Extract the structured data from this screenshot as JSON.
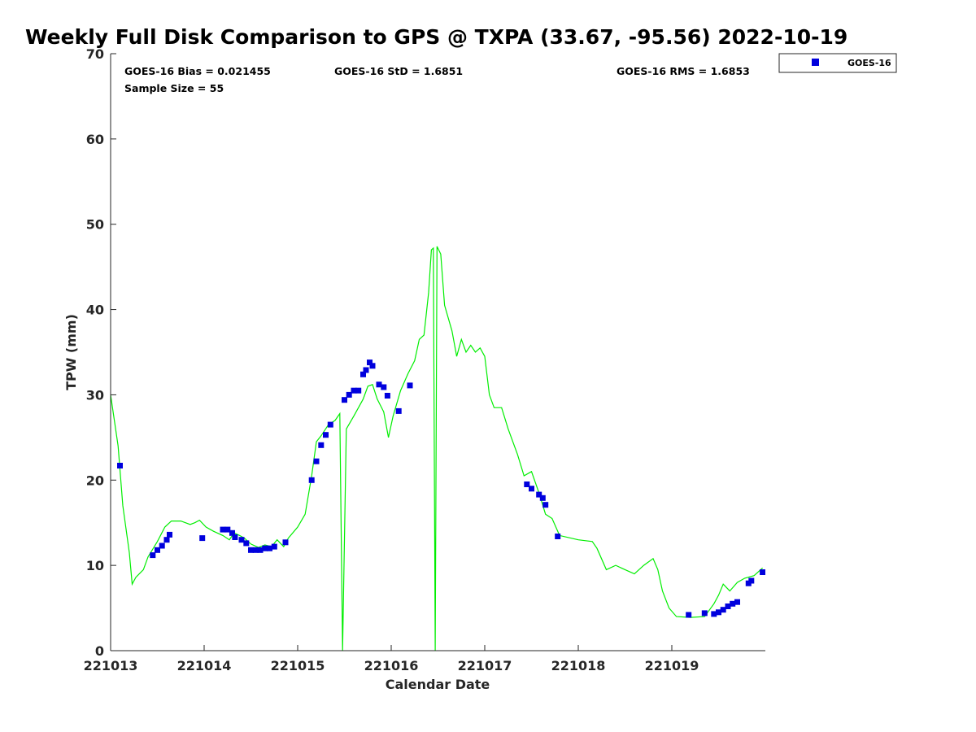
{
  "colors": {
    "gps_line": "#00ee00",
    "goes_marker": "#0000dd",
    "axis": "#262626"
  },
  "chart_data": {
    "type": "line",
    "title": "Weekly Full Disk Comparison to GPS @ TXPA (33.67, -95.56) 2022-10-19",
    "xlabel": "Calendar Date",
    "ylabel": "TPW (mm)",
    "xlim": [
      221013,
      221020
    ],
    "ylim": [
      0,
      70
    ],
    "x_ticks": [
      221013,
      221014,
      221015,
      221016,
      221017,
      221018,
      221019
    ],
    "x_tick_labels": [
      "221013",
      "221014",
      "221015",
      "221016",
      "221017",
      "221018",
      "221019"
    ],
    "y_ticks": [
      0,
      10,
      20,
      30,
      40,
      50,
      60,
      70
    ],
    "y_tick_labels": [
      "0",
      "10",
      "20",
      "30",
      "40",
      "50",
      "60",
      "70"
    ],
    "grid": false,
    "legend_position": "top-right outside plot",
    "legend": [
      "GOES-16"
    ],
    "stats": {
      "bias": "GOES-16 Bias = 0.021455",
      "std": "GOES-16 StD = 1.6851",
      "rms": "GOES-16 RMS = 1.6853",
      "sample": "Sample Size = 55"
    },
    "series": [
      {
        "kind": "line",
        "color": "#00ee00",
        "points": [
          [
            221013.0,
            30.0
          ],
          [
            221013.08,
            24.0
          ],
          [
            221013.13,
            17.0
          ],
          [
            221013.2,
            11.5
          ],
          [
            221013.23,
            7.8
          ],
          [
            221013.27,
            8.6
          ],
          [
            221013.35,
            9.5
          ],
          [
            221013.4,
            11.0
          ],
          [
            221013.5,
            12.8
          ],
          [
            221013.58,
            14.5
          ],
          [
            221013.65,
            15.2
          ],
          [
            221013.75,
            15.2
          ],
          [
            221013.85,
            14.8
          ],
          [
            221013.9,
            15.0
          ],
          [
            221013.95,
            15.3
          ],
          [
            221014.02,
            14.5
          ],
          [
            221014.1,
            14.0
          ],
          [
            221014.2,
            13.5
          ],
          [
            221014.27,
            13.0
          ],
          [
            221014.32,
            13.8
          ],
          [
            221014.38,
            13.5
          ],
          [
            221014.43,
            13.2
          ],
          [
            221014.5,
            12.5
          ],
          [
            221014.58,
            12.1
          ],
          [
            221014.65,
            12.4
          ],
          [
            221014.72,
            12.2
          ],
          [
            221014.78,
            13.0
          ],
          [
            221014.85,
            12.2
          ],
          [
            221014.9,
            13.2
          ],
          [
            221015.0,
            14.5
          ],
          [
            221015.08,
            16.0
          ],
          [
            221015.15,
            20.5
          ],
          [
            221015.2,
            24.5
          ],
          [
            221015.25,
            25.2
          ],
          [
            221015.33,
            26.5
          ],
          [
            221015.4,
            27.0
          ],
          [
            221015.45,
            27.8
          ],
          [
            221015.48,
            0.0
          ],
          [
            221015.52,
            26.0
          ],
          [
            221015.6,
            27.5
          ],
          [
            221015.7,
            29.5
          ],
          [
            221015.75,
            31.0
          ],
          [
            221015.8,
            31.2
          ],
          [
            221015.85,
            29.5
          ],
          [
            221015.92,
            28.0
          ],
          [
            221015.97,
            25.0
          ],
          [
            221016.02,
            27.5
          ],
          [
            221016.1,
            30.5
          ],
          [
            221016.18,
            32.5
          ],
          [
            221016.25,
            34.0
          ],
          [
            221016.3,
            36.5
          ],
          [
            221016.35,
            37.0
          ],
          [
            221016.4,
            42.0
          ],
          [
            221016.43,
            47.0
          ],
          [
            221016.45,
            47.2
          ],
          [
            221016.47,
            0.0
          ],
          [
            221016.49,
            47.4
          ],
          [
            221016.53,
            46.5
          ],
          [
            221016.57,
            40.5
          ],
          [
            221016.65,
            37.5
          ],
          [
            221016.7,
            34.5
          ],
          [
            221016.75,
            36.5
          ],
          [
            221016.8,
            35.0
          ],
          [
            221016.85,
            35.8
          ],
          [
            221016.9,
            35.0
          ],
          [
            221016.95,
            35.5
          ],
          [
            221017.0,
            34.5
          ],
          [
            221017.05,
            30.0
          ],
          [
            221017.1,
            28.5
          ],
          [
            221017.18,
            28.5
          ],
          [
            221017.25,
            26.0
          ],
          [
            221017.35,
            23.0
          ],
          [
            221017.42,
            20.5
          ],
          [
            221017.5,
            21.0
          ],
          [
            221017.58,
            18.5
          ],
          [
            221017.65,
            16.0
          ],
          [
            221017.72,
            15.5
          ],
          [
            221017.8,
            13.5
          ],
          [
            221018.0,
            13.0
          ],
          [
            221018.15,
            12.8
          ],
          [
            221018.2,
            12.0
          ],
          [
            221018.3,
            9.5
          ],
          [
            221018.4,
            10.0
          ],
          [
            221018.5,
            9.5
          ],
          [
            221018.6,
            9.0
          ],
          [
            221018.7,
            10.0
          ],
          [
            221018.8,
            10.8
          ],
          [
            221018.85,
            9.5
          ],
          [
            221018.9,
            7.0
          ],
          [
            221018.97,
            5.0
          ],
          [
            221019.05,
            4.0
          ],
          [
            221019.2,
            3.9
          ],
          [
            221019.35,
            4.0
          ],
          [
            221019.45,
            5.5
          ],
          [
            221019.5,
            6.5
          ],
          [
            221019.55,
            7.8
          ],
          [
            221019.62,
            7.0
          ],
          [
            221019.7,
            8.0
          ],
          [
            221019.78,
            8.5
          ],
          [
            221019.88,
            8.8
          ],
          [
            221019.97,
            9.7
          ]
        ]
      },
      {
        "name": "GOES-16",
        "kind": "scatter",
        "color": "#0000dd",
        "points": [
          [
            221013.1,
            21.7
          ],
          [
            221013.45,
            11.2
          ],
          [
            221013.5,
            11.8
          ],
          [
            221013.55,
            12.3
          ],
          [
            221013.6,
            13.0
          ],
          [
            221013.63,
            13.6
          ],
          [
            221013.98,
            13.2
          ],
          [
            221014.2,
            14.2
          ],
          [
            221014.25,
            14.2
          ],
          [
            221014.3,
            13.8
          ],
          [
            221014.33,
            13.3
          ],
          [
            221014.45,
            12.6
          ],
          [
            221014.5,
            11.8
          ],
          [
            221014.55,
            11.8
          ],
          [
            221014.6,
            11.8
          ],
          [
            221014.65,
            12.0
          ],
          [
            221014.7,
            12.0
          ],
          [
            221014.75,
            12.2
          ],
          [
            221014.87,
            12.7
          ],
          [
            221015.15,
            20.0
          ],
          [
            221015.2,
            22.2
          ],
          [
            221015.25,
            24.1
          ],
          [
            221015.3,
            25.3
          ],
          [
            221015.35,
            26.5
          ],
          [
            221015.5,
            29.4
          ],
          [
            221015.55,
            30.0
          ],
          [
            221015.6,
            30.5
          ],
          [
            221015.65,
            30.5
          ],
          [
            221015.7,
            32.4
          ],
          [
            221015.73,
            32.9
          ],
          [
            221015.77,
            33.8
          ],
          [
            221015.8,
            33.4
          ],
          [
            221015.87,
            31.2
          ],
          [
            221015.92,
            30.9
          ],
          [
            221015.96,
            29.9
          ],
          [
            221016.08,
            28.1
          ],
          [
            221016.2,
            31.1
          ],
          [
            221017.45,
            19.5
          ],
          [
            221017.5,
            19.0
          ],
          [
            221017.58,
            18.3
          ],
          [
            221017.62,
            17.9
          ],
          [
            221017.65,
            17.1
          ],
          [
            221017.78,
            13.4
          ],
          [
            221019.18,
            4.2
          ],
          [
            221019.35,
            4.4
          ],
          [
            221019.45,
            4.3
          ],
          [
            221019.5,
            4.5
          ],
          [
            221019.55,
            4.8
          ],
          [
            221019.6,
            5.2
          ],
          [
            221019.65,
            5.5
          ],
          [
            221019.7,
            5.7
          ],
          [
            221019.82,
            7.9
          ],
          [
            221019.85,
            8.2
          ],
          [
            221019.97,
            9.2
          ],
          [
            221014.4,
            13.0
          ]
        ]
      }
    ]
  }
}
